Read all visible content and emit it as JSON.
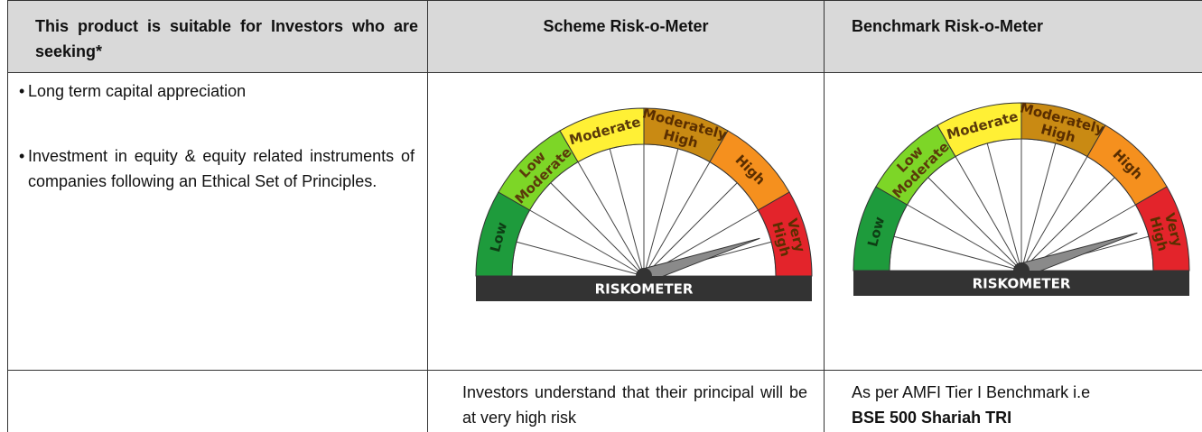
{
  "header": {
    "cells": [
      "This product is suitable for Investors who are seeking*",
      "Scheme Risk-o-Meter",
      "Benchmark Risk-o-Meter"
    ]
  },
  "objectives": [
    "Long term capital appreciation",
    "Investment in equity & equity related instruments of companies following an Ethical Set of Principles."
  ],
  "riskometers": [
    {
      "segments": [
        [
          "Low"
        ],
        [
          "Low",
          "Moderate"
        ],
        [
          "Moderate"
        ],
        [
          "Moderately",
          "High"
        ],
        [
          "High"
        ],
        [
          "Very",
          "High"
        ]
      ],
      "caption": "RISKOMETER"
    },
    {
      "segments": [
        [
          "Low"
        ],
        [
          "Low",
          "Moderate"
        ],
        [
          "Moderate"
        ],
        [
          "Moderately",
          "High"
        ],
        [
          "High"
        ],
        [
          "Very",
          "High"
        ]
      ],
      "caption": "RISKOMETER"
    }
  ],
  "footer": {
    "scheme_note": "Investors understand that their principal will be at very high risk",
    "benchmark_note": "As per AMFI Tier I Benchmark i.e",
    "benchmark_name": "BSE 500 Shariah TRI"
  }
}
